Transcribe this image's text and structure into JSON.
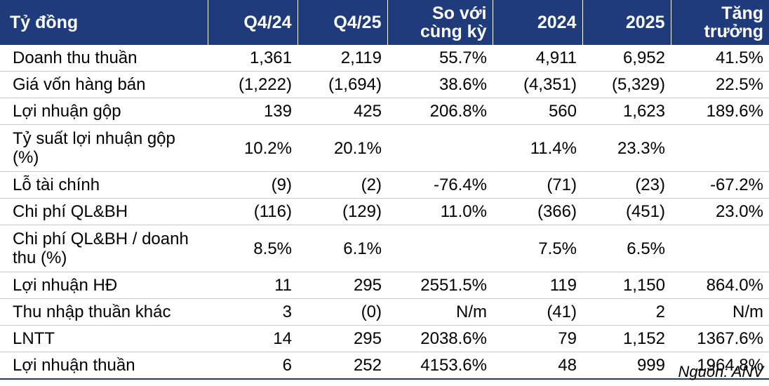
{
  "table": {
    "headers": [
      "Tỷ đồng",
      "Q4/24",
      "Q4/25",
      "So với\ncùng kỳ",
      "2024",
      "2025",
      "Tăng\ntrưởng"
    ],
    "rows": [
      {
        "label": "Doanh thu thuần",
        "values": [
          "1,361",
          "2,119",
          "55.7%",
          "4,911",
          "6,952",
          "41.5%"
        ]
      },
      {
        "label": "Giá vốn hàng bán",
        "values": [
          "(1,222)",
          "(1,694)",
          "38.6%",
          "(4,351)",
          "(5,329)",
          "22.5%"
        ]
      },
      {
        "label": "Lợi nhuận gộp",
        "values": [
          "139",
          "425",
          "206.8%",
          "560",
          "1,623",
          "189.6%"
        ]
      },
      {
        "label": "Tỷ suất lợi nhuận gộp (%)",
        "values": [
          "10.2%",
          "20.1%",
          "",
          "11.4%",
          "23.3%",
          ""
        ]
      },
      {
        "label": "Lỗ tài chính",
        "values": [
          "(9)",
          "(2)",
          "-76.4%",
          "(71)",
          "(23)",
          "-67.2%"
        ]
      },
      {
        "label": "Chi phí QL&BH",
        "values": [
          "(116)",
          "(129)",
          "11.0%",
          "(366)",
          "(451)",
          "23.0%"
        ]
      },
      {
        "label": "Chi phí QL&BH / doanh thu (%)",
        "values": [
          "8.5%",
          "6.1%",
          "",
          "7.5%",
          "6.5%",
          ""
        ]
      },
      {
        "label": "Lợi nhuận HĐ",
        "values": [
          "11",
          "295",
          "2551.5%",
          "119",
          "1,150",
          "864.0%"
        ]
      },
      {
        "label": "Thu nhập thuần khác",
        "values": [
          "3",
          "(0)",
          "N/m",
          "(41)",
          "2",
          "N/m"
        ]
      },
      {
        "label": "LNTT",
        "values": [
          "14",
          "295",
          "2038.6%",
          "79",
          "1,152",
          "1367.6%"
        ]
      },
      {
        "label": "Lợi nhuận thuần",
        "values": [
          "6",
          "252",
          "4153.6%",
          "48",
          "999",
          "1964.8%"
        ]
      }
    ]
  },
  "source": "Nguồn: ANV"
}
